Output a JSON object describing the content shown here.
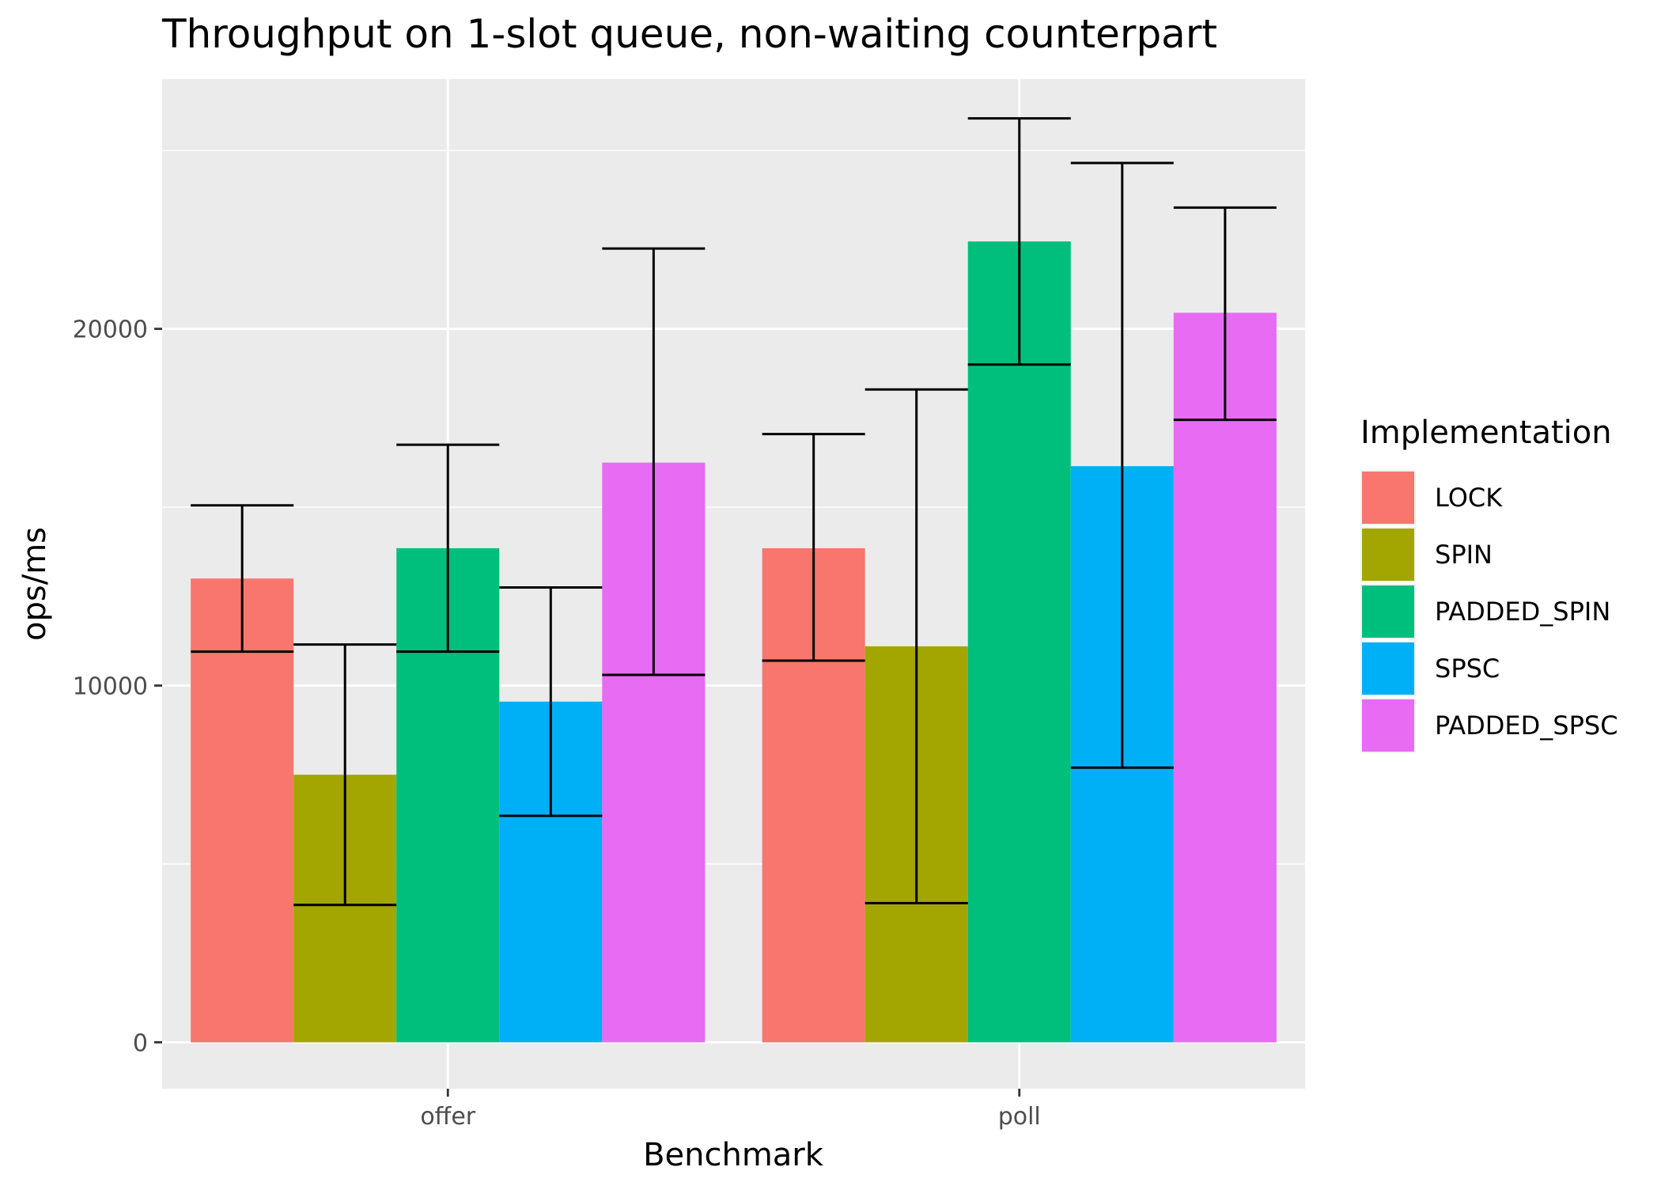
{
  "chart_data": {
    "type": "bar",
    "title": "Throughput on 1-slot queue, non-waiting counterpart",
    "xlabel": "Benchmark",
    "ylabel": "ops/ms",
    "categories": [
      "offer",
      "poll"
    ],
    "ylim": [
      -1300,
      27000
    ],
    "yticks": [
      0,
      10000,
      20000
    ],
    "grid": true,
    "legend": {
      "title": "Implementation",
      "position": "right"
    },
    "series": [
      {
        "name": "LOCK",
        "color": "#F8766D",
        "values": [
          13000,
          13850
        ],
        "error_low": [
          10950,
          10700
        ],
        "error_high": [
          15050,
          17050
        ]
      },
      {
        "name": "SPIN",
        "color": "#A3A500",
        "values": [
          7500,
          11100
        ],
        "error_low": [
          3850,
          3900
        ],
        "error_high": [
          11150,
          18300
        ]
      },
      {
        "name": "PADDED_SPIN",
        "color": "#00BF7D",
        "values": [
          13850,
          22450
        ],
        "error_low": [
          10950,
          19000
        ],
        "error_high": [
          16750,
          25900
        ]
      },
      {
        "name": "SPSC",
        "color": "#00B0F6",
        "values": [
          9550,
          16150
        ],
        "error_low": [
          6350,
          7700
        ],
        "error_high": [
          12750,
          24650
        ]
      },
      {
        "name": "PADDED_SPSC",
        "color": "#E76BF3",
        "values": [
          16250,
          20450
        ],
        "error_low": [
          10300,
          17450
        ],
        "error_high": [
          22250,
          23400
        ]
      }
    ]
  }
}
